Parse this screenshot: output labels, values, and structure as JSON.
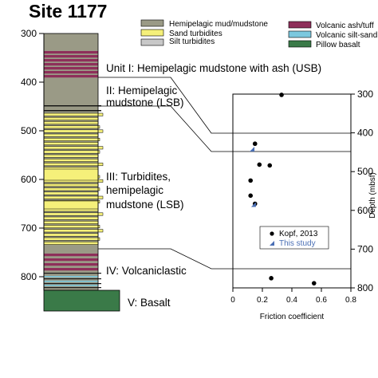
{
  "title": "Site 1177",
  "legend": {
    "hemipelagic": "Hemipelagic mud/mudstone",
    "sand": "Sand turbidites",
    "silt": "Silt turbidites",
    "volcanic_ash": "Volcanic ash/tuff",
    "volcanic_silt": "Volcanic silt-sand",
    "basalt": "Pillow basalt"
  },
  "colors": {
    "hemipelagic": "#9a9a86",
    "sand": "#f5f07a",
    "silt": "#c8c8c8",
    "volcanic_ash": "#8e2f5a",
    "volcanic_silt": "#7bc8de",
    "basalt": "#3a7a48",
    "triangle": "#4a6fb5"
  },
  "column": {
    "depth_ticks": [
      "300",
      "400",
      "500",
      "600",
      "700",
      "800"
    ],
    "units": {
      "u1": "Unit I: Hemipelagic mudstone with ash (USB)",
      "u2a": "II: Hemipelagic",
      "u2b": "mudstone (LSB)",
      "u3a": "III: Turbidites,",
      "u3b": "hemipelagic",
      "u3c": "mudstone (LSB)",
      "u4": "IV: Volcaniclastic",
      "u5": "V: Basalt"
    }
  },
  "chart_data": {
    "type": "scatter",
    "xlabel": "Friction coefficient",
    "ylabel": "Depth (mbsf)",
    "xlim": [
      0,
      0.8
    ],
    "ylim": [
      300,
      800
    ],
    "y_inverted": true,
    "x_ticks": [
      "0",
      "0.2",
      "0.4",
      "0.6",
      "0.8"
    ],
    "y_ticks": [
      "300",
      "400",
      "500",
      "600",
      "700",
      "800"
    ],
    "legend_position": "bottom-center",
    "series": [
      {
        "name": "Kopf, 2013",
        "marker": "circle",
        "points": [
          {
            "x": 0.33,
            "y": 302
          },
          {
            "x": 0.15,
            "y": 428
          },
          {
            "x": 0.18,
            "y": 482
          },
          {
            "x": 0.25,
            "y": 484
          },
          {
            "x": 0.12,
            "y": 523
          },
          {
            "x": 0.12,
            "y": 562
          },
          {
            "x": 0.15,
            "y": 583
          },
          {
            "x": 0.26,
            "y": 775
          },
          {
            "x": 0.55,
            "y": 788
          }
        ]
      },
      {
        "name": "This study",
        "marker": "triangle",
        "points": [
          {
            "x": 0.13,
            "y": 442
          },
          {
            "x": 0.14,
            "y": 585
          }
        ]
      }
    ]
  }
}
